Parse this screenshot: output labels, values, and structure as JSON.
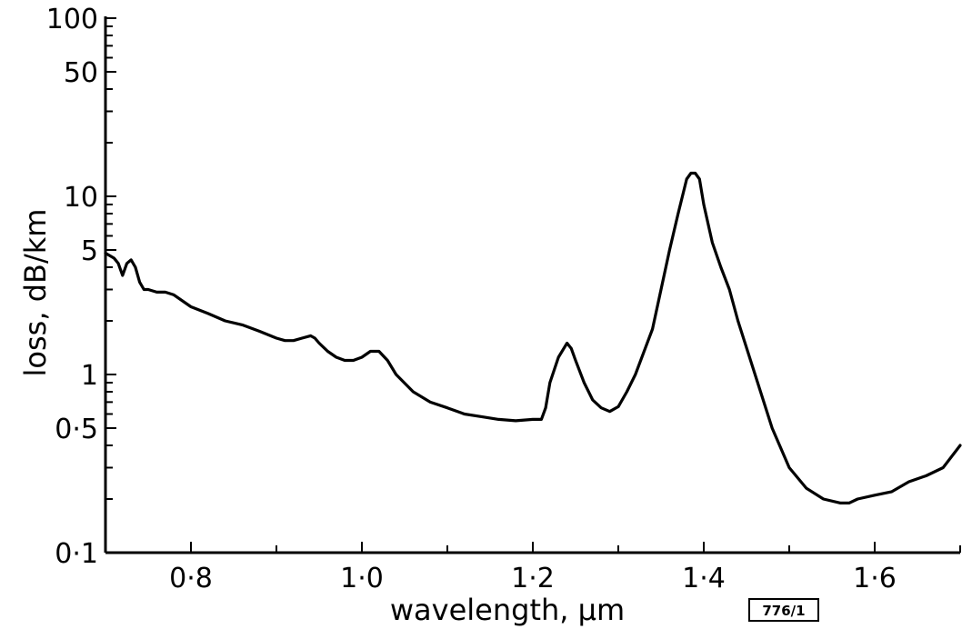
{
  "chart_data": {
    "type": "line",
    "title": "",
    "xlabel": "wavelength, µm",
    "ylabel": "loss, dB/km",
    "x_scale": "linear",
    "y_scale": "log",
    "xlim": [
      0.7,
      1.7
    ],
    "ylim": [
      0.1,
      100
    ],
    "grid": false,
    "legend": "none",
    "x_tick_labels": [
      {
        "value": 0.8,
        "label": "0·8"
      },
      {
        "value": 1.0,
        "label": "1·0"
      },
      {
        "value": 1.2,
        "label": "1·2"
      },
      {
        "value": 1.4,
        "label": "1·4"
      },
      {
        "value": 1.6,
        "label": "1·6"
      }
    ],
    "y_tick_labels": [
      {
        "value": 0.1,
        "label": "0·1"
      },
      {
        "value": 0.5,
        "label": "0·5"
      },
      {
        "value": 1,
        "label": "1"
      },
      {
        "value": 5,
        "label": "5"
      },
      {
        "value": 10,
        "label": "10"
      },
      {
        "value": 50,
        "label": "50"
      },
      {
        "value": 100,
        "label": "100"
      }
    ],
    "annotation": "776/1",
    "series": [
      {
        "x": [
          0.7,
          0.71,
          0.715,
          0.72,
          0.725,
          0.73,
          0.735,
          0.74,
          0.745,
          0.75,
          0.76,
          0.77,
          0.78,
          0.8,
          0.82,
          0.84,
          0.86,
          0.88,
          0.9,
          0.91,
          0.92,
          0.93,
          0.94,
          0.945,
          0.95,
          0.96,
          0.97,
          0.98,
          0.99,
          1.0,
          1.01,
          1.02,
          1.03,
          1.04,
          1.06,
          1.08,
          1.1,
          1.12,
          1.14,
          1.16,
          1.18,
          1.2,
          1.21,
          1.215,
          1.22,
          1.23,
          1.24,
          1.245,
          1.25,
          1.26,
          1.27,
          1.28,
          1.29,
          1.3,
          1.31,
          1.32,
          1.34,
          1.35,
          1.36,
          1.37,
          1.38,
          1.385,
          1.39,
          1.395,
          1.4,
          1.41,
          1.42,
          1.43,
          1.44,
          1.46,
          1.48,
          1.5,
          1.52,
          1.54,
          1.56,
          1.57,
          1.58,
          1.6,
          1.62,
          1.64,
          1.66,
          1.68,
          1.7
        ],
        "values": [
          4.8,
          4.5,
          4.2,
          3.6,
          4.2,
          4.4,
          4.0,
          3.3,
          3.0,
          3.0,
          2.9,
          2.9,
          2.8,
          2.4,
          2.2,
          2.0,
          1.9,
          1.75,
          1.6,
          1.55,
          1.55,
          1.6,
          1.65,
          1.6,
          1.5,
          1.35,
          1.25,
          1.2,
          1.2,
          1.25,
          1.35,
          1.35,
          1.2,
          1.0,
          0.8,
          0.7,
          0.65,
          0.6,
          0.58,
          0.56,
          0.55,
          0.56,
          0.56,
          0.65,
          0.9,
          1.25,
          1.5,
          1.4,
          1.2,
          0.9,
          0.72,
          0.65,
          0.62,
          0.66,
          0.8,
          1.0,
          1.8,
          3.0,
          5.0,
          8.0,
          12.5,
          13.5,
          13.5,
          12.5,
          9.0,
          5.5,
          4.0,
          3.0,
          2.0,
          1.0,
          0.5,
          0.3,
          0.23,
          0.2,
          0.19,
          0.19,
          0.2,
          0.21,
          0.22,
          0.25,
          0.27,
          0.3,
          0.4
        ]
      }
    ]
  }
}
